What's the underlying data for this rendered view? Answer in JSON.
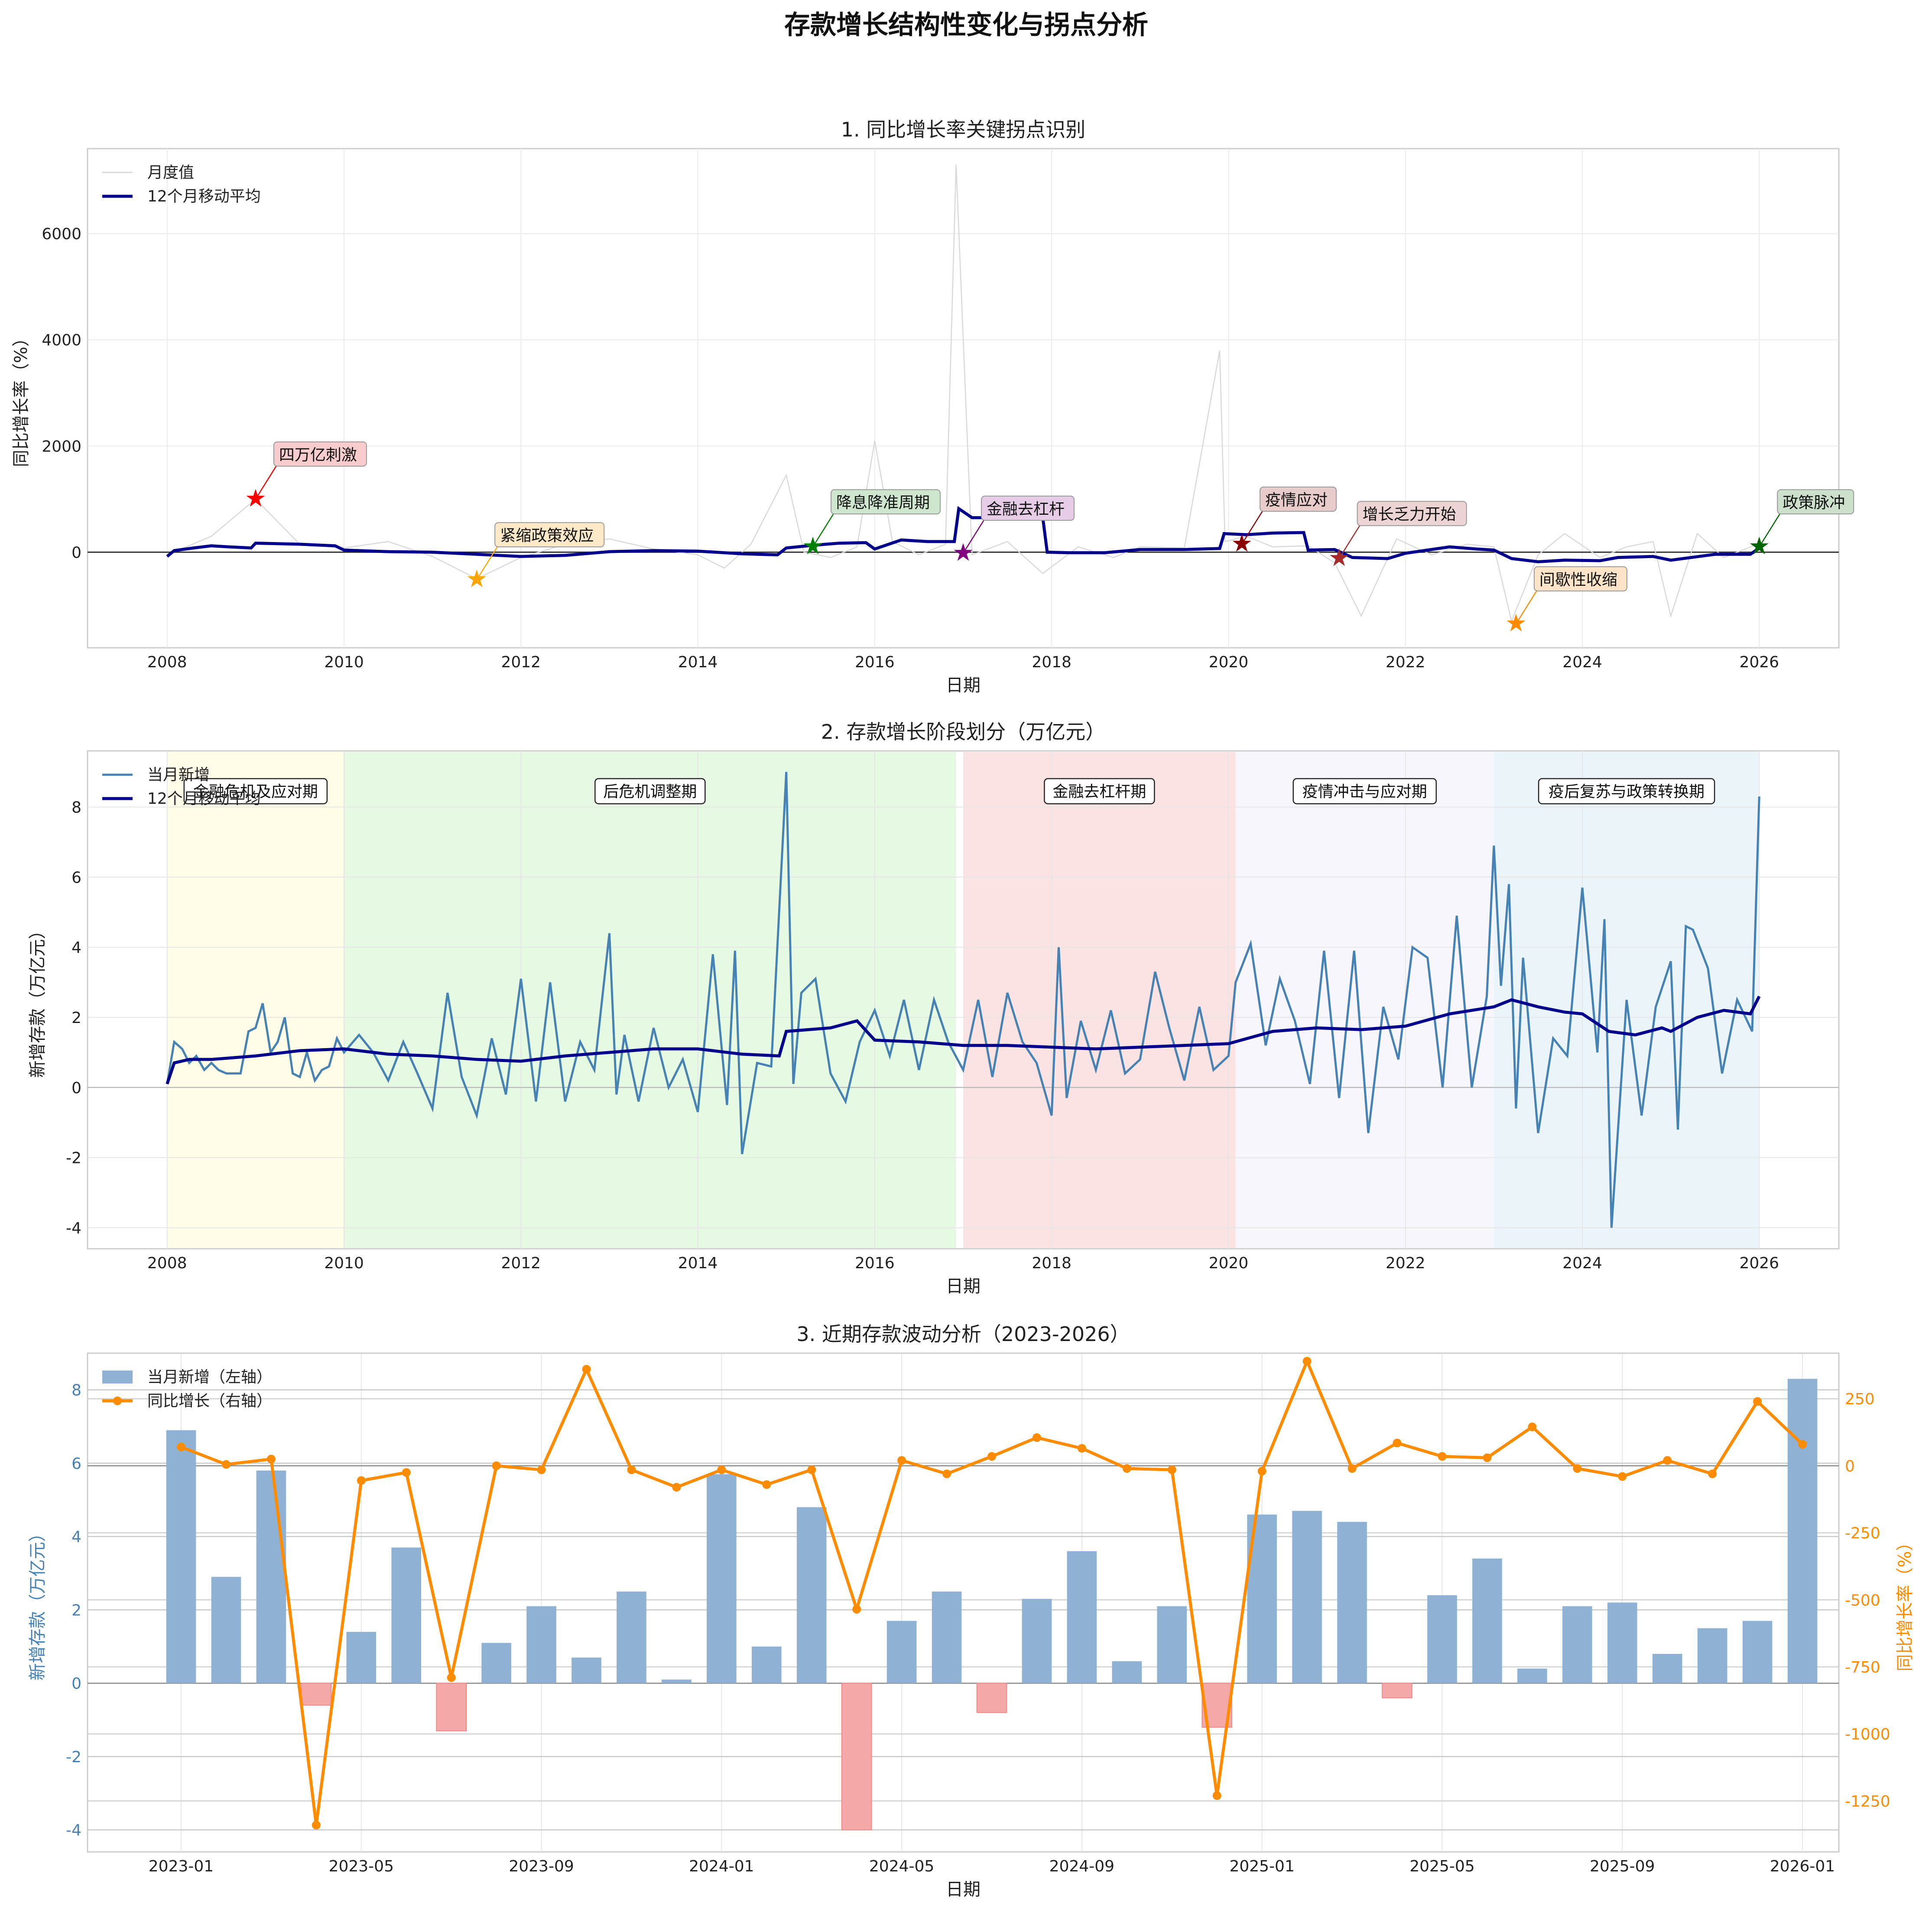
{
  "figure_title": "存款增长结构性变化与拐点分析",
  "colors": {
    "monthly_line": "#d9d9d9",
    "ma_line": "#00008b",
    "new_deposit": "#4682b4",
    "bar_pos": "#8fb1d4",
    "bar_neg": "#f4a9a8",
    "yoy_line": "#ff8c00",
    "zero_line": "#333333"
  },
  "chart_data": [
    {
      "id": "panel1",
      "type": "line",
      "title": "1. 同比增长率关键拐点识别",
      "xlabel": "日期",
      "ylabel": "同比增长率（%）",
      "xlim": [
        2007.1,
        2026.9
      ],
      "ylim": [
        -1800,
        7600
      ],
      "xticks": [
        2008,
        2010,
        2012,
        2014,
        2016,
        2018,
        2020,
        2022,
        2024,
        2026
      ],
      "yticks": [
        0,
        2000,
        4000,
        6000
      ],
      "legend": {
        "position": "top-left",
        "entries": [
          "月度值",
          "12个月移动平均"
        ]
      },
      "series": [
        {
          "name": "月度值",
          "x": [
            2008.0,
            2008.5,
            2009.0,
            2009.5,
            2010.0,
            2010.5,
            2011.0,
            2011.5,
            2012.0,
            2012.5,
            2013.0,
            2013.5,
            2014.0,
            2014.3,
            2014.6,
            2015.0,
            2015.2,
            2015.5,
            2015.8,
            2016.0,
            2016.2,
            2016.5,
            2016.8,
            2016.92,
            2017.1,
            2017.5,
            2017.9,
            2018.3,
            2018.7,
            2019.0,
            2019.5,
            2019.9,
            2019.96,
            2020.2,
            2020.5,
            2020.9,
            2021.2,
            2021.5,
            2021.9,
            2022.3,
            2022.7,
            2023.0,
            2023.2,
            2023.5,
            2023.8,
            2024.2,
            2024.5,
            2024.8,
            2025.0,
            2025.3,
            2025.6,
            2025.9,
            2026.0
          ],
          "values": [
            -50,
            300,
            1000,
            150,
            80,
            200,
            -80,
            -500,
            -100,
            150,
            250,
            60,
            -50,
            -300,
            150,
            1450,
            0,
            -100,
            100,
            2100,
            200,
            -50,
            150,
            7300,
            -50,
            200,
            -400,
            100,
            -100,
            100,
            80,
            3800,
            200,
            300,
            100,
            120,
            -200,
            -1200,
            250,
            -50,
            150,
            100,
            -1300,
            -50,
            350,
            -100,
            100,
            200,
            -1200,
            350,
            -100,
            100,
            150
          ]
        },
        {
          "name": "12个月移动平均",
          "x": [
            2008.0,
            2008.08,
            2008.3,
            2008.5,
            2008.7,
            2008.95,
            2009.0,
            2009.5,
            2009.9,
            2010.0,
            2010.5,
            2011.0,
            2011.5,
            2012.0,
            2012.5,
            2013.0,
            2013.5,
            2014.0,
            2014.5,
            2014.9,
            2015.0,
            2015.3,
            2015.6,
            2015.9,
            2016.0,
            2016.3,
            2016.6,
            2016.9,
            2016.95,
            2017.1,
            2017.9,
            2017.95,
            2018.2,
            2018.6,
            2019.0,
            2019.5,
            2019.9,
            2019.95,
            2020.2,
            2020.5,
            2020.85,
            2020.9,
            2021.2,
            2021.4,
            2021.8,
            2022.0,
            2022.5,
            2022.8,
            2023.0,
            2023.2,
            2023.5,
            2023.8,
            2024.2,
            2024.4,
            2024.8,
            2025.0,
            2025.5,
            2025.9,
            2026.0
          ],
          "values": [
            -80,
            30,
            80,
            120,
            100,
            80,
            170,
            150,
            120,
            40,
            10,
            0,
            -40,
            -80,
            -60,
            10,
            30,
            20,
            -30,
            -50,
            80,
            130,
            170,
            180,
            60,
            230,
            200,
            200,
            820,
            650,
            650,
            0,
            -10,
            -10,
            50,
            50,
            70,
            350,
            330,
            360,
            370,
            40,
            50,
            -100,
            -120,
            -20,
            100,
            60,
            40,
            -120,
            -180,
            -150,
            -160,
            -100,
            -80,
            -150,
            -40,
            -40,
            80
          ]
        }
      ],
      "annotations": [
        {
          "label": "四万亿刺激",
          "x": 2009.0,
          "y": 1000,
          "color": "#ff0000",
          "box": "#f8cccc"
        },
        {
          "label": "紧缩政策效应",
          "x": 2011.5,
          "y": -520,
          "color": "#ffa500",
          "box": "#fde8c8"
        },
        {
          "label": "降息降准周期",
          "x": 2015.3,
          "y": 100,
          "color": "#008000",
          "box": "#cde6cd"
        },
        {
          "label": "金融去杠杆",
          "x": 2017.0,
          "y": -20,
          "color": "#800080",
          "box": "#e6cce6"
        },
        {
          "label": "疫情应对",
          "x": 2020.15,
          "y": 150,
          "color": "#8b0000",
          "box": "#e8cccc"
        },
        {
          "label": "增长乏力开始",
          "x": 2021.25,
          "y": -120,
          "color": "#a52a2a",
          "box": "#ecd4d4"
        },
        {
          "label": "间歇性收缩",
          "x": 2023.25,
          "y": -1350,
          "color": "#ff8c00",
          "box": "#fde4c8"
        },
        {
          "label": "政策脉冲",
          "x": 2026.0,
          "y": 100,
          "color": "#006400",
          "box": "#cce0cc"
        }
      ]
    },
    {
      "id": "panel2",
      "type": "line",
      "title": "2. 存款增长阶段划分（万亿元）",
      "xlabel": "日期",
      "ylabel": "新增存款（万亿元）",
      "xlim": [
        2007.1,
        2026.9
      ],
      "ylim": [
        -4.6,
        9.6
      ],
      "xticks": [
        2008,
        2010,
        2012,
        2014,
        2016,
        2018,
        2020,
        2022,
        2024,
        2026
      ],
      "yticks": [
        -4,
        -2,
        0,
        2,
        4,
        6,
        8
      ],
      "legend": {
        "position": "top-left",
        "entries": [
          "当月新增",
          "12个月移动平均"
        ]
      },
      "phases": [
        {
          "label": "金融危机及应对期",
          "start": 2008.0,
          "end": 2010.0,
          "color": "#fffde8"
        },
        {
          "label": "后危机调整期",
          "start": 2010.0,
          "end": 2016.92,
          "color": "#e6f9e3"
        },
        {
          "label": "金融去杠杆期",
          "start": 2017.0,
          "end": 2020.08,
          "color": "#fbe3e3"
        },
        {
          "label": "疫情冲击与应对期",
          "start": 2020.08,
          "end": 2023.0,
          "color": "#f6f6fc"
        },
        {
          "label": "疫后复苏与政策转换期",
          "start": 2023.0,
          "end": 2026.0,
          "color": "#ebf5f9"
        }
      ],
      "series": [
        {
          "name": "当月新增",
          "x": [
            2008.0,
            2008.08,
            2008.17,
            2008.25,
            2008.33,
            2008.42,
            2008.5,
            2008.58,
            2008.67,
            2008.75,
            2008.83,
            2008.92,
            2009.0,
            2009.08,
            2009.17,
            2009.25,
            2009.33,
            2009.42,
            2009.5,
            2009.58,
            2009.67,
            2009.75,
            2009.83,
            2009.92,
            2010.0,
            2010.17,
            2010.33,
            2010.5,
            2010.67,
            2010.83,
            2011.0,
            2011.17,
            2011.33,
            2011.5,
            2011.67,
            2011.83,
            2012.0,
            2012.17,
            2012.33,
            2012.5,
            2012.67,
            2012.83,
            2013.0,
            2013.08,
            2013.17,
            2013.33,
            2013.5,
            2013.67,
            2013.83,
            2014.0,
            2014.17,
            2014.33,
            2014.42,
            2014.5,
            2014.67,
            2014.83,
            2015.0,
            2015.08,
            2015.17,
            2015.33,
            2015.5,
            2015.67,
            2015.83,
            2016.0,
            2016.17,
            2016.33,
            2016.5,
            2016.67,
            2016.83,
            2017.0,
            2017.17,
            2017.33,
            2017.5,
            2017.67,
            2017.83,
            2018.0,
            2018.08,
            2018.17,
            2018.33,
            2018.5,
            2018.67,
            2018.83,
            2019.0,
            2019.17,
            2019.33,
            2019.5,
            2019.67,
            2019.83,
            2020.0,
            2020.08,
            2020.25,
            2020.42,
            2020.58,
            2020.75,
            2020.92,
            2021.08,
            2021.25,
            2021.42,
            2021.58,
            2021.75,
            2021.92,
            2022.08,
            2022.25,
            2022.42,
            2022.58,
            2022.75,
            2022.92,
            2023.0,
            2023.08,
            2023.17,
            2023.25,
            2023.33,
            2023.5,
            2023.67,
            2023.83,
            2024.0,
            2024.17,
            2024.25,
            2024.33,
            2024.5,
            2024.67,
            2024.83,
            2025.0,
            2025.08,
            2025.17,
            2025.25,
            2025.42,
            2025.58,
            2025.75,
            2025.92,
            2026.0
          ],
          "values": [
            0.1,
            1.3,
            1.1,
            0.7,
            0.9,
            0.5,
            0.7,
            0.5,
            0.4,
            0.4,
            0.4,
            1.6,
            1.7,
            2.4,
            1.0,
            1.3,
            2.0,
            0.4,
            0.3,
            1.0,
            0.2,
            0.5,
            0.6,
            1.4,
            1.0,
            1.5,
            1.0,
            0.2,
            1.3,
            0.4,
            -0.6,
            2.7,
            0.3,
            -0.8,
            1.4,
            -0.2,
            3.1,
            -0.4,
            3.0,
            -0.4,
            1.3,
            0.5,
            4.4,
            -0.2,
            1.5,
            -0.4,
            1.7,
            0.0,
            0.8,
            -0.7,
            3.8,
            -0.5,
            3.9,
            -1.9,
            0.7,
            0.6,
            9.0,
            0.1,
            2.7,
            3.1,
            0.4,
            -0.4,
            1.3,
            2.2,
            0.9,
            2.5,
            0.5,
            2.5,
            1.3,
            0.5,
            2.5,
            0.3,
            2.7,
            1.3,
            0.7,
            -0.8,
            4.0,
            -0.3,
            1.9,
            0.5,
            2.2,
            0.4,
            0.8,
            3.3,
            1.7,
            0.2,
            2.3,
            0.5,
            0.9,
            3.0,
            4.1,
            1.2,
            3.1,
            1.9,
            0.1,
            3.9,
            -0.3,
            3.9,
            -1.3,
            2.3,
            0.8,
            4.0,
            3.7,
            0.0,
            4.9,
            0.0,
            2.6,
            6.9,
            2.9,
            5.8,
            -0.6,
            3.7,
            -1.3,
            1.4,
            0.9,
            5.7,
            1.0,
            4.8,
            -4.0,
            2.5,
            -0.8,
            2.3,
            3.6,
            -1.2,
            4.6,
            4.5,
            3.4,
            0.4,
            2.5,
            1.6,
            8.3
          ]
        },
        {
          "name": "12个月移动平均",
          "x": [
            2008.0,
            2008.08,
            2008.25,
            2008.5,
            2009.0,
            2009.5,
            2010.0,
            2010.5,
            2011.0,
            2011.5,
            2012.0,
            2012.5,
            2013.0,
            2013.5,
            2014.0,
            2014.5,
            2014.92,
            2015.0,
            2015.5,
            2015.8,
            2016.0,
            2016.5,
            2017.0,
            2017.5,
            2018.0,
            2018.5,
            2019.0,
            2019.5,
            2020.0,
            2020.5,
            2021.0,
            2021.5,
            2022.0,
            2022.5,
            2023.0,
            2023.2,
            2023.5,
            2023.8,
            2024.0,
            2024.3,
            2024.6,
            2024.9,
            2025.0,
            2025.3,
            2025.6,
            2025.9,
            2026.0
          ],
          "values": [
            0.1,
            0.7,
            0.8,
            0.8,
            0.9,
            1.05,
            1.1,
            0.95,
            0.9,
            0.8,
            0.75,
            0.9,
            1.0,
            1.1,
            1.1,
            0.95,
            0.9,
            1.6,
            1.7,
            1.9,
            1.35,
            1.3,
            1.2,
            1.2,
            1.15,
            1.1,
            1.15,
            1.2,
            1.25,
            1.6,
            1.7,
            1.65,
            1.75,
            2.1,
            2.3,
            2.5,
            2.3,
            2.15,
            2.1,
            1.6,
            1.5,
            1.7,
            1.6,
            2.0,
            2.2,
            2.1,
            2.6
          ]
        }
      ]
    },
    {
      "id": "panel3",
      "type": "bar",
      "title": "3. 近期存款波动分析（2023-2026）",
      "xlabel": "日期",
      "ylabel": "新增存款（万亿元）",
      "ylabel_right": "同比增长率（%）",
      "ylim": [
        -4.6,
        9.0
      ],
      "ylim_right": [
        -1440,
        420
      ],
      "yticks": [
        -4,
        -2,
        0,
        2,
        4,
        6,
        8
      ],
      "yticks_right": [
        -1250,
        -1000,
        -750,
        -500,
        -250,
        0,
        250
      ],
      "xtick_labels": [
        "2023-01",
        "2023-05",
        "2023-09",
        "2024-01",
        "2024-05",
        "2024-09",
        "2025-01",
        "2025-05",
        "2025-09",
        "2026-01"
      ],
      "xtick_index": [
        0,
        4,
        8,
        12,
        16,
        20,
        24,
        28,
        32,
        36
      ],
      "legend": {
        "position": "top-left",
        "entries": [
          "当月新增（左轴）",
          "同比增长（右轴）"
        ]
      },
      "months": [
        "2023-01",
        "2023-02",
        "2023-03",
        "2023-04",
        "2023-05",
        "2023-06",
        "2023-07",
        "2023-08",
        "2023-09",
        "2023-10",
        "2023-11",
        "2023-12",
        "2024-01",
        "2024-02",
        "2024-03",
        "2024-04",
        "2024-05",
        "2024-06",
        "2024-07",
        "2024-08",
        "2024-09",
        "2024-10",
        "2024-11",
        "2024-12",
        "2025-01",
        "2025-02",
        "2025-03",
        "2025-04",
        "2025-05",
        "2025-06",
        "2025-07",
        "2025-08",
        "2025-09",
        "2025-10",
        "2025-11",
        "2025-12",
        "2026-01"
      ],
      "series": [
        {
          "name": "当月新增（左轴）",
          "axis": "left",
          "values": [
            6.9,
            2.9,
            5.8,
            -0.6,
            1.4,
            3.7,
            -1.3,
            1.1,
            2.1,
            0.7,
            2.5,
            0.1,
            5.7,
            1.0,
            4.8,
            -4.0,
            1.7,
            2.5,
            -0.8,
            2.3,
            3.6,
            0.6,
            2.1,
            -1.2,
            4.6,
            4.7,
            4.4,
            -0.4,
            2.4,
            3.4,
            0.4,
            2.1,
            2.2,
            0.8,
            1.5,
            1.7,
            8.3
          ]
        },
        {
          "name": "同比增长（右轴）",
          "axis": "right",
          "values": [
            70,
            5,
            25,
            -1340,
            -55,
            -25,
            -790,
            0,
            -15,
            360,
            -15,
            -80,
            -15,
            -70,
            -15,
            -535,
            20,
            -30,
            35,
            105,
            65,
            -10,
            -15,
            -1230,
            -20,
            390,
            -10,
            85,
            35,
            30,
            145,
            -10,
            -40,
            20,
            -30,
            240,
            80
          ]
        }
      ]
    }
  ]
}
